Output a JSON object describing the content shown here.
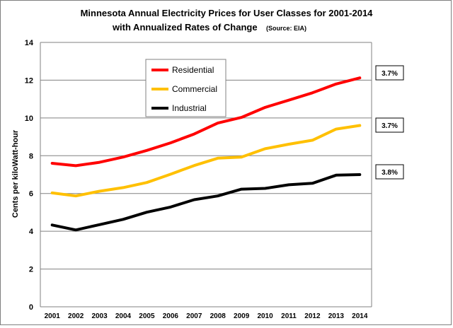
{
  "chart_data": {
    "type": "line",
    "title_line1": "Minnesota Annual Electricity Prices for User Classes for 2001-2014",
    "title_line2": "with Annualized Rates of Change",
    "source_note": "(Source: EIA)",
    "ylabel": "Cents per kiloWatt-hour",
    "xlabel": "",
    "x": [
      "2001",
      "2002",
      "2003",
      "2004",
      "2005",
      "2006",
      "2007",
      "2008",
      "2009",
      "2010",
      "2011",
      "2012",
      "2013",
      "2014"
    ],
    "ylim": [
      0,
      14
    ],
    "yticks": [
      "0",
      "2",
      "4",
      "6",
      "8",
      "10",
      "12",
      "14"
    ],
    "grid": "horizontal",
    "legend_position": "upper-left inside",
    "series": [
      {
        "name": "Residential",
        "color": "#ff0000",
        "rate_label": "3.7%",
        "values": [
          7.6,
          7.47,
          7.65,
          7.93,
          8.28,
          8.68,
          9.15,
          9.73,
          10.03,
          10.56,
          10.94,
          11.33,
          11.8,
          12.12
        ]
      },
      {
        "name": "Commercial",
        "color": "#ffc000",
        "rate_label": "3.7%",
        "values": [
          6.03,
          5.87,
          6.12,
          6.31,
          6.58,
          7.02,
          7.48,
          7.87,
          7.93,
          8.37,
          8.61,
          8.82,
          9.41,
          9.6
        ]
      },
      {
        "name": "Industrial",
        "color": "#000000",
        "rate_label": "3.8%",
        "values": [
          4.33,
          4.07,
          4.35,
          4.63,
          5.01,
          5.28,
          5.67,
          5.87,
          6.23,
          6.27,
          6.46,
          6.54,
          6.97,
          7.0
        ]
      }
    ]
  }
}
